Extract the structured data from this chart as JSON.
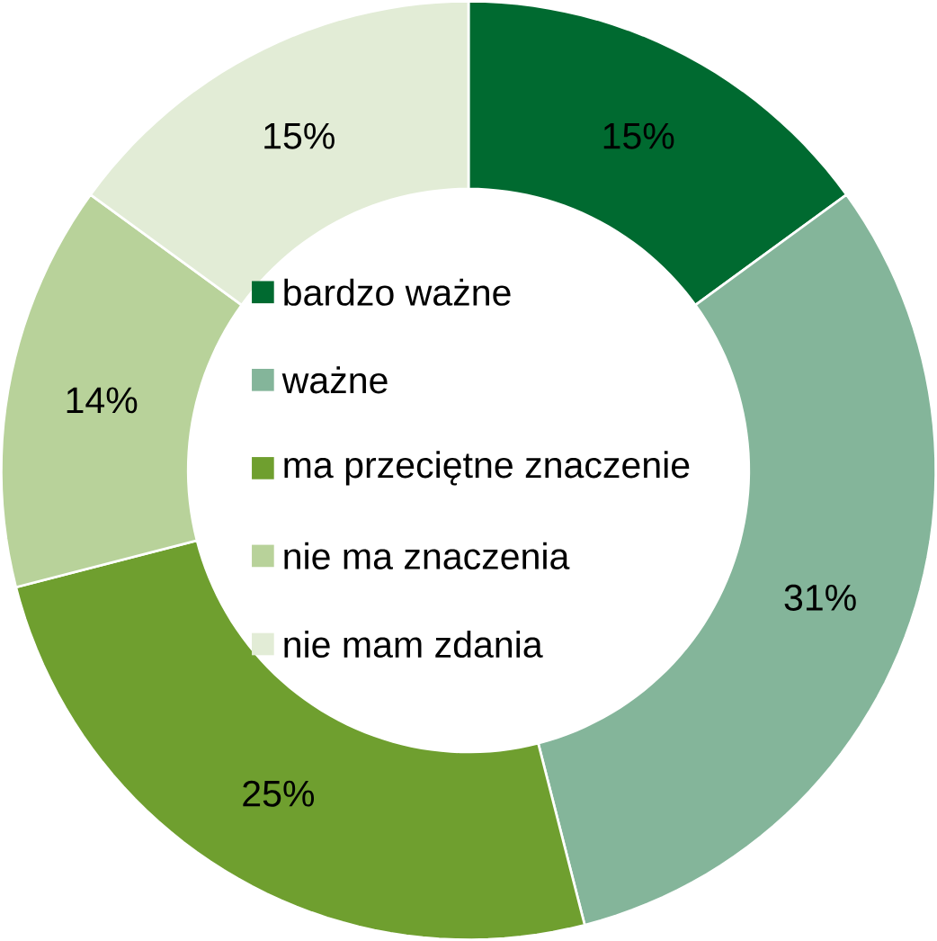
{
  "chart_data": {
    "type": "donut",
    "categories": [
      "bardzo ważne",
      "ważne",
      "ma przeciętne znaczenie",
      "nie ma znaczenia",
      "nie mam zdania"
    ],
    "values": [
      15,
      31,
      25,
      14,
      15
    ],
    "value_labels": [
      "15%",
      "31%",
      "25%",
      "14%",
      "15%"
    ],
    "colors": [
      "#006a30",
      "#84b59a",
      "#6f9f2f",
      "#b8d29a",
      "#e2ecd6"
    ],
    "legend": "center"
  }
}
